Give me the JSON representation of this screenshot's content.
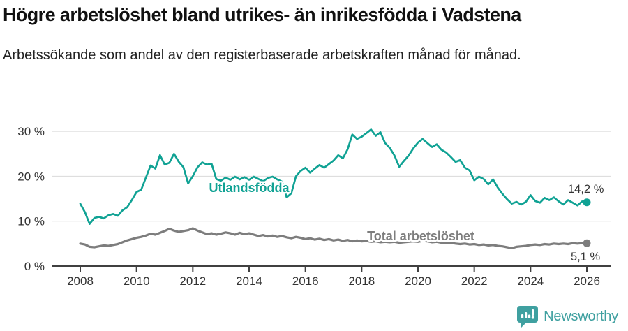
{
  "title": "Högre arbetslöshet bland utrikes- än inrikesfödda i Vadstena",
  "subtitle": "Arbetssökande som andel av den registerbaserade arbetskraften månad för månad.",
  "footer": {
    "brand": "Newsworthy",
    "logo_icon": "bar-chart-speech-bubble-icon",
    "brand_color": "#3fa0a0"
  },
  "chart_data": {
    "type": "line",
    "title": "Högre arbetslöshet bland utrikes- än inrikesfödda i Vadstena",
    "xlabel": "",
    "ylabel": "Arbetssökande som andel av den registerbaserade arbetskraften",
    "x_unit": "year-month",
    "x_start": 2008.0,
    "x_end": 2026.0,
    "x_step_years": 0.166667,
    "x_ticks": [
      2008,
      2010,
      2012,
      2014,
      2016,
      2018,
      2020,
      2022,
      2024,
      2026
    ],
    "y_ticks": [
      {
        "value": 0,
        "label": "0 %"
      },
      {
        "value": 10,
        "label": "10 %"
      },
      {
        "value": 20,
        "label": "20 %"
      },
      {
        "value": 30,
        "label": "30 %"
      }
    ],
    "ylim": [
      0,
      32.5
    ],
    "grid": "horizontal",
    "legend_position": "inline-labels",
    "series": [
      {
        "name": "Utlandsfödda",
        "color": "#10a294",
        "line_width": 2.7,
        "end_value": 14.2,
        "end_label": "14,2 %",
        "values": [
          13.9,
          12.0,
          9.4,
          10.7,
          11.0,
          10.6,
          11.3,
          11.6,
          11.2,
          12.4,
          13.1,
          14.7,
          16.5,
          17.0,
          19.7,
          22.4,
          21.7,
          24.7,
          22.6,
          23.0,
          25.0,
          23.2,
          22.0,
          18.4,
          20.0,
          22.0,
          23.1,
          22.6,
          22.8,
          19.4,
          19.0,
          19.7,
          19.2,
          19.9,
          19.3,
          19.8,
          19.2,
          19.9,
          19.4,
          18.9,
          19.6,
          19.9,
          19.3,
          18.8,
          15.3,
          16.2,
          20.0,
          21.2,
          21.9,
          20.8,
          21.7,
          22.5,
          21.9,
          22.7,
          23.5,
          24.7,
          24.0,
          26.0,
          29.3,
          28.3,
          28.8,
          29.6,
          30.4,
          29.0,
          29.8,
          27.4,
          26.3,
          24.6,
          22.1,
          23.4,
          24.6,
          26.2,
          27.5,
          28.3,
          27.4,
          26.5,
          27.1,
          25.9,
          25.3,
          24.3,
          23.2,
          23.6,
          21.9,
          21.3,
          19.1,
          19.9,
          19.4,
          18.2,
          19.3,
          17.5,
          16.1,
          14.9,
          13.9,
          14.3,
          13.7,
          14.3,
          15.8,
          14.5,
          14.1,
          15.2,
          14.7,
          15.3,
          14.4,
          13.7,
          14.7,
          14.1,
          13.5,
          14.4,
          14.2
        ]
      },
      {
        "name": "Total arbetslöshet",
        "color": "#7d7d7d",
        "line_width": 3.2,
        "end_value": 5.1,
        "end_label": "5,1 %",
        "values": [
          5.0,
          4.8,
          4.3,
          4.2,
          4.4,
          4.6,
          4.5,
          4.7,
          4.9,
          5.3,
          5.7,
          6.0,
          6.3,
          6.5,
          6.8,
          7.2,
          7.0,
          7.4,
          7.8,
          8.3,
          7.9,
          7.6,
          7.8,
          8.0,
          8.4,
          7.9,
          7.5,
          7.1,
          7.3,
          7.0,
          7.2,
          7.5,
          7.3,
          7.0,
          7.4,
          7.1,
          7.3,
          7.0,
          6.7,
          6.9,
          6.6,
          6.8,
          6.5,
          6.7,
          6.4,
          6.2,
          6.5,
          6.3,
          6.0,
          6.2,
          5.9,
          6.1,
          5.8,
          6.0,
          5.7,
          5.9,
          5.6,
          5.8,
          5.5,
          5.7,
          5.5,
          5.6,
          5.4,
          5.5,
          5.3,
          5.4,
          5.3,
          5.4,
          5.2,
          5.3,
          5.4,
          5.5,
          5.4,
          5.6,
          5.5,
          5.3,
          5.4,
          5.2,
          5.1,
          5.2,
          5.0,
          4.9,
          5.0,
          4.8,
          4.9,
          4.7,
          4.8,
          4.6,
          4.7,
          4.5,
          4.4,
          4.2,
          4.0,
          4.3,
          4.4,
          4.5,
          4.7,
          4.8,
          4.7,
          4.9,
          4.8,
          5.0,
          4.9,
          5.0,
          4.9,
          5.1,
          5.0,
          5.1,
          5.1
        ]
      }
    ]
  }
}
